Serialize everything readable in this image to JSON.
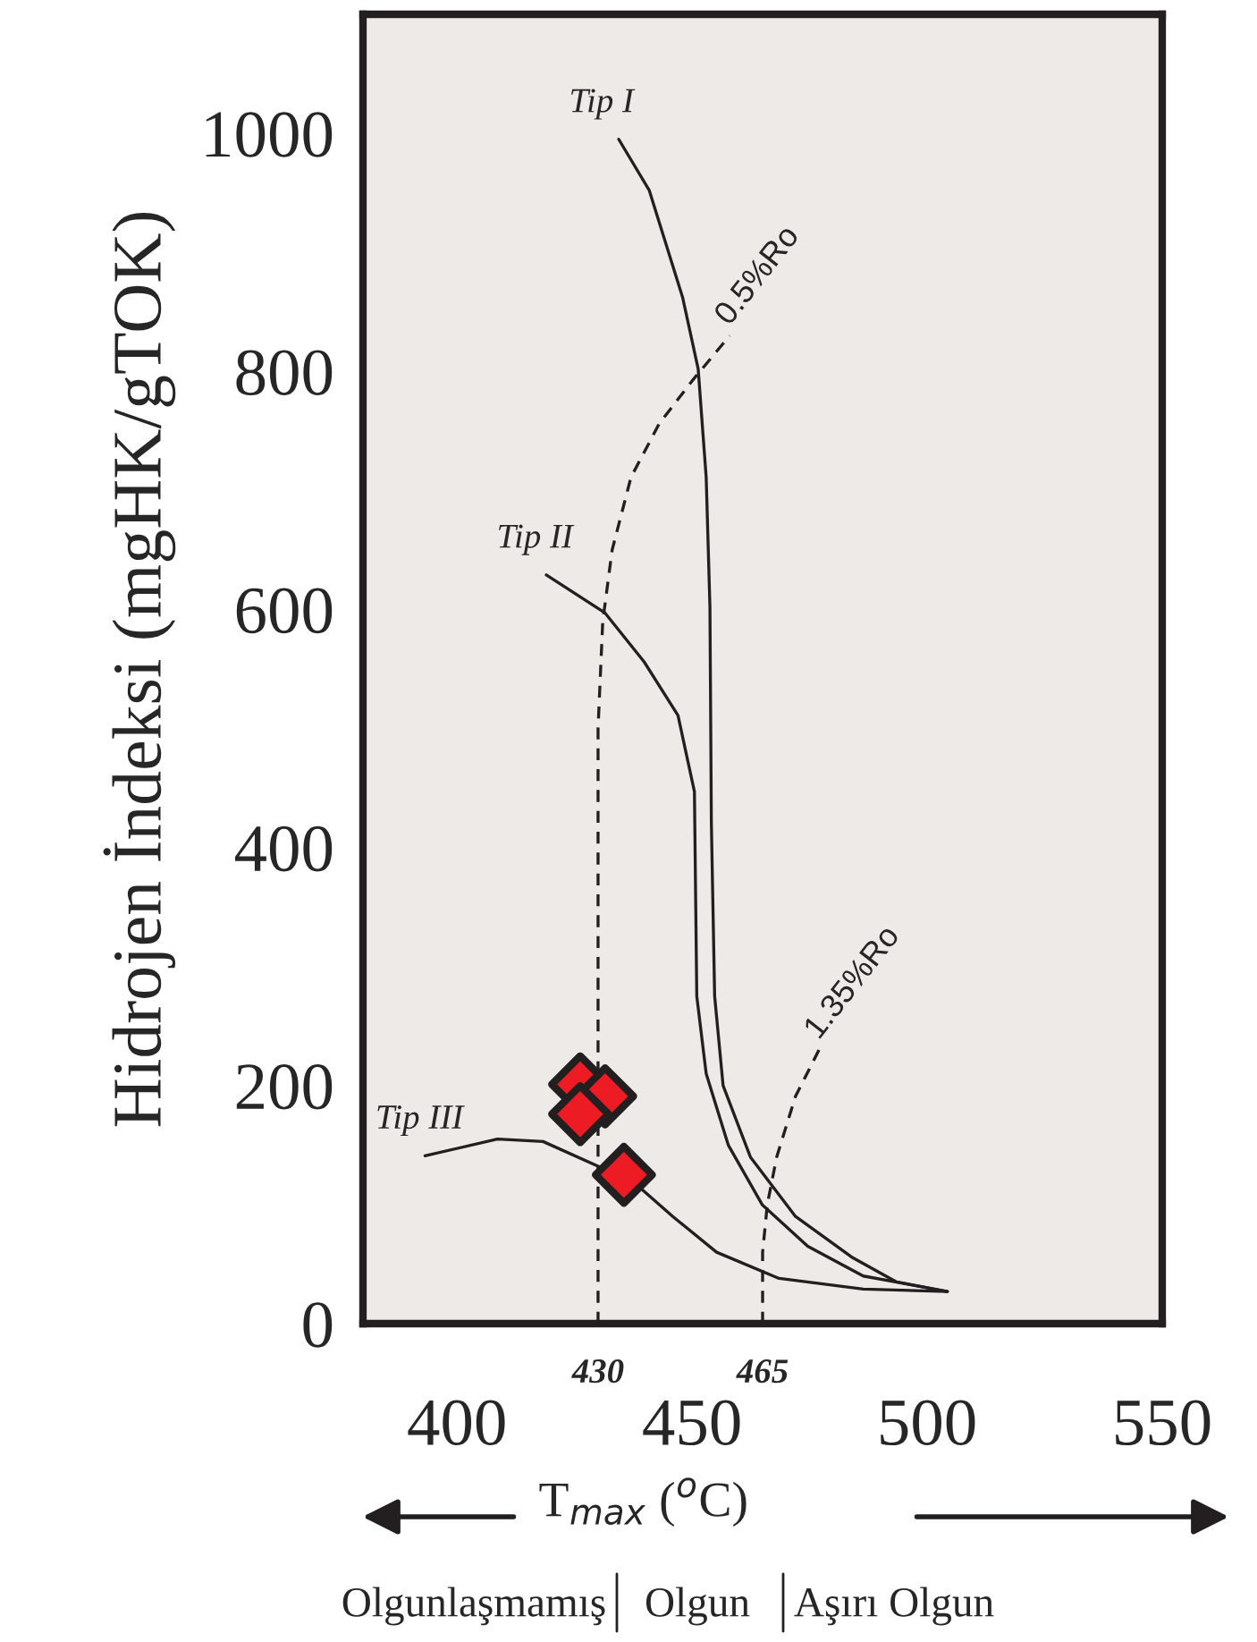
{
  "chart_data": {
    "type": "line",
    "ylabel": "Hidrojen İndeksi (mgHK/gTOK)",
    "xlabel": "T$_{max}$ ($^{o}$C)",
    "xlim": [
      380,
      550
    ],
    "ylim": [
      0,
      1100
    ],
    "xticks": [
      400,
      450,
      500,
      550
    ],
    "yticks": [
      0,
      200,
      400,
      600,
      800,
      1000
    ],
    "grid": false,
    "legend": false,
    "series": [
      {
        "name": "Tip I",
        "color": "#231f20",
        "line_style": "solid",
        "x": [
          434.4,
          440.9,
          448,
          451.3,
          453,
          453.8,
          454.1,
          454.8,
          456.6,
          462.4,
          472,
          483.9,
          493.5,
          504.3
        ],
        "values": [
          995,
          952,
          862,
          802,
          711,
          602,
          421,
          275,
          200,
          140,
          90,
          56,
          35,
          27
        ]
      },
      {
        "name": "Tip II",
        "color": "#231f20",
        "line_style": "solid",
        "x": [
          419,
          431.5,
          439.8,
          447,
          450.5,
          451,
          453,
          457.7,
          464.9,
          474.6,
          486.4,
          504.3
        ],
        "values": [
          629,
          597,
          556,
          511,
          447,
          275,
          210,
          150,
          100,
          65,
          40,
          27
        ]
      },
      {
        "name": "Tip III",
        "color": "#231f20",
        "line_style": "solid",
        "x": [
          393.2,
          408.6,
          418.3,
          430.1,
          438.7,
          445.9,
          455.2,
          468.5,
          486.4,
          504.3
        ],
        "values": [
          141,
          155,
          153,
          132,
          115,
          90,
          60,
          38,
          29,
          27
        ]
      },
      {
        "name": "0.5%Ro",
        "color": "#231f20",
        "line_style": "dashed",
        "x": [
          430,
          430,
          431,
          433,
          437,
          443,
          450,
          458
        ],
        "values": [
          0,
          500,
          590,
          650,
          711,
          756,
          792,
          830
        ]
      },
      {
        "name": "1.35%Ro",
        "color": "#231f20",
        "line_style": "dashed",
        "x": [
          465,
          465,
          466,
          468,
          472,
          477
        ],
        "values": [
          0,
          60,
          100,
          140,
          191,
          230
        ]
      },
      {
        "type": "scatter",
        "marker": "diamond",
        "color": "#ed1c24",
        "x": [
          426.2,
          431.5,
          426.2,
          435.5
        ],
        "values": [
          201,
          191,
          176,
          125
        ]
      }
    ],
    "annotations": [
      {
        "text": "430",
        "x": 430,
        "y": 0
      },
      {
        "text": "465",
        "x": 465,
        "y": 0
      },
      "Olgunlaşmamış",
      "Olgun",
      "Aşırı Olgun"
    ]
  }
}
